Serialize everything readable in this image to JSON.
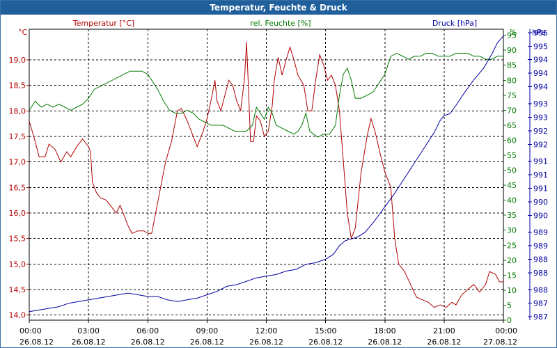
{
  "window": {
    "title": "Temperatur, Feuchte & Druck"
  },
  "colors": {
    "temperature": "#b00000",
    "humidity": "#007a00",
    "pressure": "#0000a0",
    "grid": "#000000",
    "title_bar": "#1f5f9c"
  },
  "chart_data": {
    "type": "line",
    "title": "Temperatur, Feuchte & Druck",
    "grid": true,
    "x": {
      "range_hours": [
        0,
        24
      ],
      "ticks": [
        {
          "h": 0,
          "time": "00:00",
          "date": "26.08.12"
        },
        {
          "h": 3,
          "time": "03:00",
          "date": "26.08.12"
        },
        {
          "h": 6,
          "time": "06:00",
          "date": "26.08.12"
        },
        {
          "h": 9,
          "time": "09:00",
          "date": "26.08.12"
        },
        {
          "h": 12,
          "time": "12:00",
          "date": "26.08.12"
        },
        {
          "h": 15,
          "time": "15:00",
          "date": "26.08.12"
        },
        {
          "h": 18,
          "time": "18:00",
          "date": "26.08.12"
        },
        {
          "h": 21,
          "time": "21:00",
          "date": "26.08.12"
        },
        {
          "h": 24,
          "time": "00:00",
          "date": "27.08.12"
        }
      ]
    },
    "axes": {
      "temperature": {
        "label": "Temperatur [°C]",
        "unit": "°C",
        "ylim": [
          13.9,
          19.6
        ],
        "ticks": [
          "14,0",
          "14,5",
          "15,0",
          "15,5",
          "16,0",
          "16,5",
          "17,0",
          "17,5",
          "18,0",
          "18,5",
          "19,0"
        ],
        "tick_values": [
          14.0,
          14.5,
          15.0,
          15.5,
          16.0,
          16.5,
          17.0,
          17.5,
          18.0,
          18.5,
          19.0
        ]
      },
      "humidity": {
        "label": "rel. Feuchte [%]",
        "unit": "%",
        "ylim": [
          0,
          97
        ],
        "ticks": [
          "0",
          "5",
          "10",
          "15",
          "20",
          "25",
          "30",
          "35",
          "40",
          "45",
          "50",
          "55",
          "60",
          "65",
          "70",
          "75",
          "80",
          "85",
          "90",
          "95"
        ],
        "tick_values": [
          0,
          5,
          10,
          15,
          20,
          25,
          30,
          35,
          40,
          45,
          50,
          55,
          60,
          65,
          70,
          75,
          80,
          85,
          90,
          95
        ]
      },
      "pressure": {
        "label": "Druck [hPa]",
        "unit": "hPa",
        "ylim": [
          986.7,
          995.3
        ],
        "ticks": [
          "987",
          "987",
          "988",
          "988",
          "988",
          "989",
          "989",
          "990",
          "990",
          "991",
          "991",
          "991",
          "992",
          "992",
          "993",
          "993",
          "994",
          "994",
          "994",
          "995",
          "995"
        ],
        "tick_values": [
          986.8,
          987.2,
          987.6,
          988.1,
          988.5,
          988.9,
          989.3,
          989.8,
          990.2,
          990.6,
          991.0,
          991.4,
          991.9,
          992.3,
          992.7,
          993.1,
          993.6,
          994.0,
          994.4,
          994.8,
          995.2
        ]
      }
    },
    "series": [
      {
        "name": "Temperatur",
        "axis": "temperature",
        "color": "#b00000",
        "points": [
          [
            0,
            17.8
          ],
          [
            0.3,
            17.4
          ],
          [
            0.5,
            17.1
          ],
          [
            0.8,
            17.1
          ],
          [
            1.0,
            17.35
          ],
          [
            1.3,
            17.25
          ],
          [
            1.6,
            17.0
          ],
          [
            1.9,
            17.2
          ],
          [
            2.1,
            17.1
          ],
          [
            2.4,
            17.3
          ],
          [
            2.7,
            17.45
          ],
          [
            3.0,
            17.3
          ],
          [
            3.1,
            17.2
          ],
          [
            3.2,
            16.6
          ],
          [
            3.4,
            16.4
          ],
          [
            3.6,
            16.3
          ],
          [
            3.9,
            16.25
          ],
          [
            4.2,
            16.1
          ],
          [
            4.4,
            16.0
          ],
          [
            4.6,
            16.15
          ],
          [
            4.8,
            15.95
          ],
          [
            5.0,
            15.75
          ],
          [
            5.2,
            15.6
          ],
          [
            5.5,
            15.65
          ],
          [
            5.8,
            15.65
          ],
          [
            6.0,
            15.6
          ],
          [
            6.2,
            15.6
          ],
          [
            6.5,
            16.2
          ],
          [
            6.9,
            17.0
          ],
          [
            7.2,
            17.4
          ],
          [
            7.5,
            18.0
          ],
          [
            7.7,
            18.05
          ],
          [
            8.0,
            17.8
          ],
          [
            8.3,
            17.5
          ],
          [
            8.5,
            17.3
          ],
          [
            8.8,
            17.6
          ],
          [
            9.0,
            17.85
          ],
          [
            9.2,
            18.2
          ],
          [
            9.4,
            18.6
          ],
          [
            9.5,
            18.2
          ],
          [
            9.7,
            18.0
          ],
          [
            9.9,
            18.3
          ],
          [
            10.1,
            18.6
          ],
          [
            10.3,
            18.5
          ],
          [
            10.5,
            18.2
          ],
          [
            10.7,
            18.0
          ],
          [
            10.9,
            18.65
          ],
          [
            11.0,
            19.35
          ],
          [
            11.1,
            18.4
          ],
          [
            11.2,
            17.4
          ],
          [
            11.35,
            17.4
          ],
          [
            11.5,
            17.9
          ],
          [
            11.7,
            17.8
          ],
          [
            11.9,
            17.5
          ],
          [
            12.1,
            17.6
          ],
          [
            12.3,
            18.1
          ],
          [
            12.4,
            18.6
          ],
          [
            12.6,
            19.05
          ],
          [
            12.8,
            18.7
          ],
          [
            13.0,
            19.0
          ],
          [
            13.2,
            19.25
          ],
          [
            13.4,
            19.0
          ],
          [
            13.6,
            18.7
          ],
          [
            13.9,
            18.5
          ],
          [
            14.1,
            18.0
          ],
          [
            14.3,
            18.0
          ],
          [
            14.5,
            18.6
          ],
          [
            14.7,
            19.1
          ],
          [
            14.9,
            18.9
          ],
          [
            15.1,
            18.6
          ],
          [
            15.3,
            18.7
          ],
          [
            15.5,
            18.5
          ],
          [
            15.7,
            18.0
          ],
          [
            15.9,
            17.0
          ],
          [
            16.1,
            16.0
          ],
          [
            16.3,
            15.5
          ],
          [
            16.5,
            15.7
          ],
          [
            16.8,
            16.8
          ],
          [
            17.1,
            17.5
          ],
          [
            17.3,
            17.85
          ],
          [
            17.5,
            17.6
          ],
          [
            17.8,
            17.1
          ],
          [
            18.0,
            16.8
          ],
          [
            18.3,
            16.5
          ],
          [
            18.5,
            15.5
          ],
          [
            18.7,
            15.0
          ],
          [
            19.0,
            14.85
          ],
          [
            19.3,
            14.6
          ],
          [
            19.6,
            14.35
          ],
          [
            19.9,
            14.3
          ],
          [
            20.2,
            14.25
          ],
          [
            20.5,
            14.15
          ],
          [
            20.8,
            14.2
          ],
          [
            21.1,
            14.15
          ],
          [
            21.4,
            14.25
          ],
          [
            21.6,
            14.2
          ],
          [
            21.9,
            14.4
          ],
          [
            22.2,
            14.5
          ],
          [
            22.5,
            14.6
          ],
          [
            22.8,
            14.45
          ],
          [
            23.1,
            14.6
          ],
          [
            23.3,
            14.85
          ],
          [
            23.6,
            14.8
          ],
          [
            23.8,
            14.65
          ],
          [
            24.0,
            14.65
          ]
        ]
      },
      {
        "name": "rel. Feuchte",
        "axis": "humidity",
        "color": "#007a00",
        "points": [
          [
            0,
            70
          ],
          [
            0.3,
            73
          ],
          [
            0.6,
            71
          ],
          [
            0.9,
            72
          ],
          [
            1.2,
            71
          ],
          [
            1.5,
            72
          ],
          [
            1.8,
            71
          ],
          [
            2.1,
            70
          ],
          [
            2.4,
            71
          ],
          [
            2.7,
            72
          ],
          [
            3.0,
            74
          ],
          [
            3.3,
            77
          ],
          [
            3.6,
            78
          ],
          [
            3.9,
            79
          ],
          [
            4.2,
            80
          ],
          [
            4.5,
            81
          ],
          [
            4.8,
            82
          ],
          [
            5.1,
            83
          ],
          [
            5.4,
            83
          ],
          [
            5.7,
            83
          ],
          [
            6.0,
            82
          ],
          [
            6.2,
            80
          ],
          [
            6.5,
            77
          ],
          [
            6.8,
            73
          ],
          [
            7.1,
            70
          ],
          [
            7.4,
            69
          ],
          [
            7.7,
            69
          ],
          [
            8.0,
            70
          ],
          [
            8.3,
            69
          ],
          [
            8.6,
            67
          ],
          [
            8.9,
            66
          ],
          [
            9.2,
            65
          ],
          [
            9.5,
            65
          ],
          [
            9.8,
            65
          ],
          [
            10.1,
            64
          ],
          [
            10.4,
            63
          ],
          [
            10.7,
            63
          ],
          [
            11.0,
            63
          ],
          [
            11.3,
            65
          ],
          [
            11.5,
            71
          ],
          [
            11.7,
            69
          ],
          [
            11.9,
            67
          ],
          [
            12.1,
            71
          ],
          [
            12.3,
            69
          ],
          [
            12.5,
            65
          ],
          [
            12.8,
            64
          ],
          [
            13.1,
            63
          ],
          [
            13.4,
            62
          ],
          [
            13.6,
            63
          ],
          [
            13.8,
            65
          ],
          [
            14.0,
            69
          ],
          [
            14.2,
            63
          ],
          [
            14.4,
            62
          ],
          [
            14.6,
            61
          ],
          [
            14.9,
            62
          ],
          [
            15.2,
            62
          ],
          [
            15.5,
            65
          ],
          [
            15.7,
            75
          ],
          [
            15.9,
            82
          ],
          [
            16.1,
            84
          ],
          [
            16.3,
            80
          ],
          [
            16.5,
            74
          ],
          [
            16.8,
            74
          ],
          [
            17.1,
            75
          ],
          [
            17.4,
            76
          ],
          [
            17.7,
            79
          ],
          [
            18.0,
            82
          ],
          [
            18.3,
            88
          ],
          [
            18.6,
            89
          ],
          [
            18.9,
            88
          ],
          [
            19.2,
            87
          ],
          [
            19.5,
            88
          ],
          [
            19.8,
            88
          ],
          [
            20.1,
            89
          ],
          [
            20.4,
            89
          ],
          [
            20.7,
            88
          ],
          [
            21.0,
            88
          ],
          [
            21.3,
            88
          ],
          [
            21.6,
            89
          ],
          [
            21.9,
            89
          ],
          [
            22.2,
            89
          ],
          [
            22.5,
            88
          ],
          [
            22.8,
            88
          ],
          [
            23.1,
            87
          ],
          [
            23.4,
            87
          ],
          [
            23.7,
            88
          ],
          [
            24.0,
            88
          ]
        ]
      },
      {
        "name": "Druck",
        "axis": "pressure",
        "color": "#0000a0",
        "points": [
          [
            0,
            986.95
          ],
          [
            0.5,
            987.0
          ],
          [
            1.0,
            987.05
          ],
          [
            1.5,
            987.1
          ],
          [
            2.0,
            987.2
          ],
          [
            2.5,
            987.25
          ],
          [
            3.0,
            987.3
          ],
          [
            3.5,
            987.35
          ],
          [
            4.0,
            987.4
          ],
          [
            4.5,
            987.45
          ],
          [
            5.0,
            987.5
          ],
          [
            5.5,
            987.45
          ],
          [
            6.0,
            987.4
          ],
          [
            6.5,
            987.4
          ],
          [
            7.0,
            987.3
          ],
          [
            7.5,
            987.25
          ],
          [
            8.0,
            987.3
          ],
          [
            8.5,
            987.35
          ],
          [
            9.0,
            987.45
          ],
          [
            9.5,
            987.55
          ],
          [
            10.0,
            987.7
          ],
          [
            10.5,
            987.75
          ],
          [
            11.0,
            987.85
          ],
          [
            11.5,
            987.95
          ],
          [
            12.0,
            988.0
          ],
          [
            12.5,
            988.05
          ],
          [
            13.0,
            988.15
          ],
          [
            13.5,
            988.2
          ],
          [
            14.0,
            988.35
          ],
          [
            14.5,
            988.4
          ],
          [
            15.0,
            988.5
          ],
          [
            15.4,
            988.65
          ],
          [
            15.7,
            988.9
          ],
          [
            16.0,
            989.05
          ],
          [
            16.3,
            989.1
          ],
          [
            16.6,
            989.15
          ],
          [
            17.0,
            989.3
          ],
          [
            17.5,
            989.65
          ],
          [
            18.0,
            990.05
          ],
          [
            18.5,
            990.45
          ],
          [
            19.0,
            990.9
          ],
          [
            19.5,
            991.35
          ],
          [
            20.0,
            991.8
          ],
          [
            20.5,
            992.25
          ],
          [
            20.8,
            992.6
          ],
          [
            21.0,
            992.75
          ],
          [
            21.3,
            992.8
          ],
          [
            21.6,
            993.05
          ],
          [
            22.0,
            993.4
          ],
          [
            22.5,
            993.8
          ],
          [
            23.0,
            994.15
          ],
          [
            23.4,
            994.55
          ],
          [
            23.7,
            994.9
          ],
          [
            24.0,
            995.1
          ]
        ]
      }
    ]
  }
}
